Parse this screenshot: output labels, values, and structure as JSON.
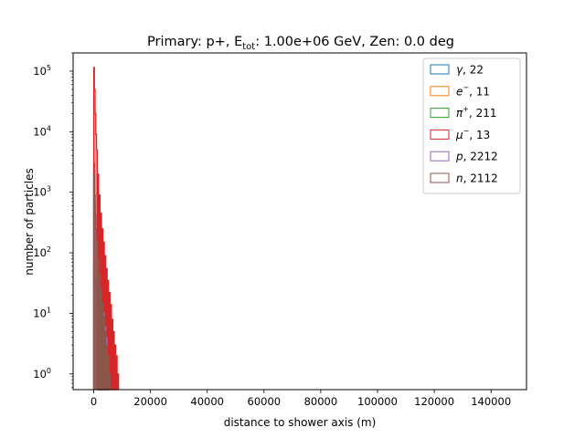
{
  "chart_data": {
    "type": "histogram",
    "title": {
      "prefix": "Primary: p+, E",
      "subscript": "tot",
      "suffix": ": 1.00e+06 GeV, Zen: 0.0 deg"
    },
    "xlabel": "distance to shower axis (m)",
    "ylabel": "number of particles",
    "xlim": [
      -7250,
      152500
    ],
    "ylim": [
      0.55,
      200000
    ],
    "yscale": "log",
    "grid": false,
    "legend_position": "top-right",
    "xticks": [
      {
        "value": 0,
        "label": "0"
      },
      {
        "value": 20000,
        "label": "20000"
      },
      {
        "value": 40000,
        "label": "40000"
      },
      {
        "value": 60000,
        "label": "60000"
      },
      {
        "value": 80000,
        "label": "80000"
      },
      {
        "value": 100000,
        "label": "100000"
      },
      {
        "value": 120000,
        "label": "120000"
      },
      {
        "value": 140000,
        "label": "140000"
      }
    ],
    "yticks": [
      {
        "value": 1,
        "base": "10",
        "exp": "0"
      },
      {
        "value": 10,
        "base": "10",
        "exp": "1"
      },
      {
        "value": 100,
        "base": "10",
        "exp": "2"
      },
      {
        "value": 1000,
        "base": "10",
        "exp": "3"
      },
      {
        "value": 10000,
        "base": "10",
        "exp": "4"
      },
      {
        "value": 100000,
        "base": "10",
        "exp": "5"
      }
    ],
    "series": [
      {
        "sym": "γ",
        "sup": "",
        "label": ", 22",
        "color": "#1f77b4",
        "points": [
          [
            0,
            3000
          ],
          [
            250,
            700
          ],
          [
            500,
            120
          ],
          [
            750,
            25
          ],
          [
            1000,
            6
          ],
          [
            1250,
            2
          ],
          [
            1500,
            1
          ]
        ]
      },
      {
        "sym": "e",
        "sup": "−",
        "label": ", 11",
        "color": "#ff7f0e",
        "points": [
          [
            0,
            2500
          ],
          [
            250,
            600
          ],
          [
            500,
            150
          ],
          [
            750,
            40
          ],
          [
            1000,
            12
          ],
          [
            1250,
            5
          ],
          [
            1500,
            3
          ],
          [
            1750,
            2
          ],
          [
            2000,
            1
          ],
          [
            2500,
            5
          ],
          [
            3000,
            2
          ]
        ]
      },
      {
        "sym": "π",
        "sup": "+",
        "label": ", 211",
        "color": "#2ca02c",
        "points": [
          [
            0,
            60
          ],
          [
            250,
            30
          ],
          [
            500,
            12
          ],
          [
            750,
            6
          ],
          [
            1000,
            3
          ],
          [
            1500,
            2
          ],
          [
            2000,
            1
          ],
          [
            2500,
            1
          ],
          [
            3000,
            1
          ]
        ]
      },
      {
        "sym": "μ",
        "sup": "−",
        "label": ", 13",
        "color": "#d62728",
        "points": [
          [
            0,
            115000
          ],
          [
            250,
            50000
          ],
          [
            500,
            20000
          ],
          [
            750,
            9000
          ],
          [
            1000,
            5000
          ],
          [
            1500,
            2000
          ],
          [
            2000,
            900
          ],
          [
            2500,
            450
          ],
          [
            3000,
            250
          ],
          [
            3500,
            150
          ],
          [
            4000,
            90
          ],
          [
            4500,
            55
          ],
          [
            5000,
            35
          ],
          [
            5500,
            22
          ],
          [
            6000,
            14
          ],
          [
            6500,
            8
          ],
          [
            7000,
            5
          ],
          [
            7500,
            3
          ],
          [
            8000,
            2
          ],
          [
            8500,
            1
          ]
        ]
      },
      {
        "sym": "p",
        "sup": "",
        "label": ", 2212",
        "color": "#9467bd",
        "points": [
          [
            0,
            1500
          ],
          [
            250,
            700
          ],
          [
            500,
            350
          ],
          [
            750,
            200
          ],
          [
            1000,
            120
          ],
          [
            1500,
            70
          ],
          [
            2000,
            40
          ],
          [
            2500,
            25
          ],
          [
            3000,
            15
          ],
          [
            3500,
            10
          ],
          [
            4000,
            6
          ],
          [
            4500,
            4
          ],
          [
            5000,
            2
          ],
          [
            5500,
            1
          ]
        ]
      },
      {
        "sym": "n",
        "sup": "",
        "label": ", 2112",
        "color": "#8c564b",
        "points": [
          [
            0,
            2000
          ],
          [
            250,
            900
          ],
          [
            500,
            450
          ],
          [
            750,
            250
          ],
          [
            1000,
            150
          ],
          [
            1500,
            80
          ],
          [
            2000,
            45
          ],
          [
            2500,
            25
          ],
          [
            3000,
            15
          ],
          [
            3500,
            9
          ],
          [
            4000,
            5
          ],
          [
            4500,
            3
          ],
          [
            5000,
            2
          ],
          [
            5500,
            1
          ]
        ]
      }
    ]
  }
}
